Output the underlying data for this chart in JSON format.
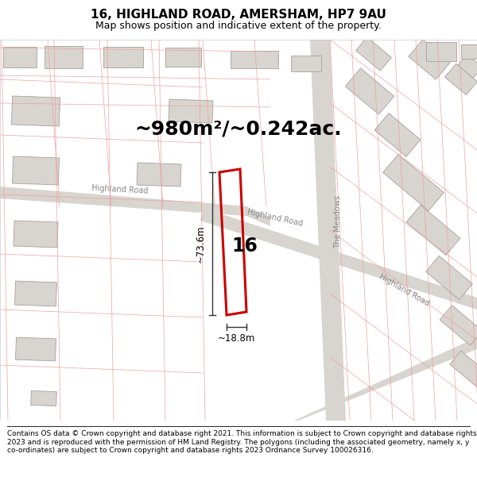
{
  "title": "16, HIGHLAND ROAD, AMERSHAM, HP7 9AU",
  "subtitle": "Map shows position and indicative extent of the property.",
  "area_text": "~980m²/~0.242ac.",
  "width_label": "~18.8m",
  "height_label": "~73.6m",
  "number_label": "16",
  "road_label_ul": "Highland Road",
  "road_label_mid": "Highland Road",
  "road_label_right": "The Meadows",
  "road_label_br": "Highland Road",
  "footer": "Contains OS data © Crown copyright and database right 2021. This information is subject to Crown copyright and database rights 2023 and is reproduced with the permission of HM Land Registry. The polygons (including the associated geometry, namely x, y co-ordinates) are subject to Crown copyright and database rights 2023 Ordnance Survey 100026316.",
  "bg_color": "#ffffff",
  "map_bg": "#ffffff",
  "road_band_color": "#d8d4cf",
  "road_line_color": "#b0a8a0",
  "parcel_line_color": "#f0a0a0",
  "building_fill": "#d8d4cf",
  "building_edge": "#a8a09a",
  "highlight_edge": "#cc0000",
  "highlight_lw": 2.2,
  "dim_line_color": "#333333",
  "title_fontsize": 11,
  "subtitle_fontsize": 9,
  "footer_fontsize": 6.5,
  "area_fontsize": 18,
  "label_fontsize": 7.5
}
